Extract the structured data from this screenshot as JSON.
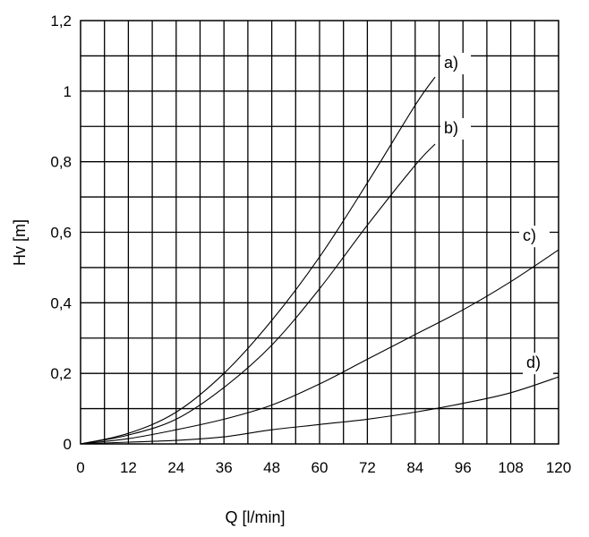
{
  "chart_data": {
    "type": "line",
    "xlabel": "Q [l/min]",
    "ylabel": "Hv [m]",
    "xlim": [
      0,
      120
    ],
    "ylim": [
      0,
      1.2
    ],
    "x_ticks": [
      "0",
      "12",
      "24",
      "36",
      "48",
      "60",
      "72",
      "84",
      "96",
      "108",
      "120"
    ],
    "y_ticks": [
      "0",
      "0,2",
      "0,4",
      "0,6",
      "0,8",
      "1",
      "1,2"
    ],
    "grid": true,
    "series": [
      {
        "name": "a)",
        "x": [
          0,
          12,
          24,
          36,
          48,
          60,
          72,
          84,
          89
        ],
        "y": [
          0,
          0.03,
          0.09,
          0.2,
          0.35,
          0.53,
          0.74,
          0.96,
          1.04
        ]
      },
      {
        "name": "b)",
        "x": [
          0,
          12,
          24,
          36,
          48,
          60,
          72,
          84,
          89
        ],
        "y": [
          0,
          0.025,
          0.07,
          0.16,
          0.28,
          0.44,
          0.62,
          0.79,
          0.85
        ]
      },
      {
        "name": "c)",
        "x": [
          0,
          12,
          24,
          36,
          48,
          60,
          72,
          84,
          96,
          108,
          120
        ],
        "y": [
          0,
          0.015,
          0.04,
          0.07,
          0.11,
          0.17,
          0.24,
          0.31,
          0.38,
          0.46,
          0.55
        ]
      },
      {
        "name": "d)",
        "x": [
          0,
          12,
          24,
          36,
          48,
          60,
          72,
          84,
          96,
          108,
          120
        ],
        "y": [
          0,
          0.005,
          0.01,
          0.02,
          0.04,
          0.055,
          0.07,
          0.09,
          0.115,
          0.145,
          0.19
        ]
      }
    ]
  }
}
